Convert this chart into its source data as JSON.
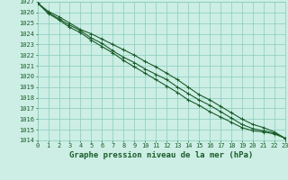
{
  "title": "Graphe pression niveau de la mer (hPa)",
  "background_color": "#cceee4",
  "grid_color": "#88ccbb",
  "line_color": "#1a5c2a",
  "x_values": [
    0,
    1,
    2,
    3,
    4,
    5,
    6,
    7,
    8,
    9,
    10,
    11,
    12,
    13,
    14,
    15,
    16,
    17,
    18,
    19,
    20,
    21,
    22,
    23
  ],
  "line1": [
    1026.9,
    1026.1,
    1025.6,
    1025.0,
    1024.4,
    1024.0,
    1023.5,
    1023.0,
    1022.5,
    1022.0,
    1021.4,
    1020.9,
    1020.3,
    1019.7,
    1019.0,
    1018.3,
    1017.8,
    1017.2,
    1016.6,
    1016.0,
    1015.5,
    1015.2,
    1014.8,
    1014.2
  ],
  "line2": [
    1026.9,
    1026.0,
    1025.4,
    1024.8,
    1024.3,
    1023.6,
    1023.1,
    1022.4,
    1021.8,
    1021.3,
    1020.7,
    1020.2,
    1019.7,
    1019.0,
    1018.4,
    1017.8,
    1017.3,
    1016.7,
    1016.1,
    1015.5,
    1015.1,
    1014.9,
    1014.7,
    1014.2
  ],
  "line3": [
    1026.9,
    1025.9,
    1025.3,
    1024.6,
    1024.1,
    1023.4,
    1022.8,
    1022.2,
    1021.5,
    1020.9,
    1020.3,
    1019.7,
    1019.1,
    1018.5,
    1017.8,
    1017.3,
    1016.7,
    1016.2,
    1015.7,
    1015.2,
    1014.9,
    1014.8,
    1014.6,
    1014.2
  ],
  "ylim": [
    1014,
    1027
  ],
  "xlim": [
    0,
    23
  ],
  "yticks": [
    1014,
    1015,
    1016,
    1017,
    1018,
    1019,
    1020,
    1021,
    1022,
    1023,
    1024,
    1025,
    1026,
    1027
  ],
  "xticks": [
    0,
    1,
    2,
    3,
    4,
    5,
    6,
    7,
    8,
    9,
    10,
    11,
    12,
    13,
    14,
    15,
    16,
    17,
    18,
    19,
    20,
    21,
    22,
    23
  ],
  "font_color": "#1a5c2a",
  "title_fontsize": 6.5,
  "tick_fontsize": 5.0
}
